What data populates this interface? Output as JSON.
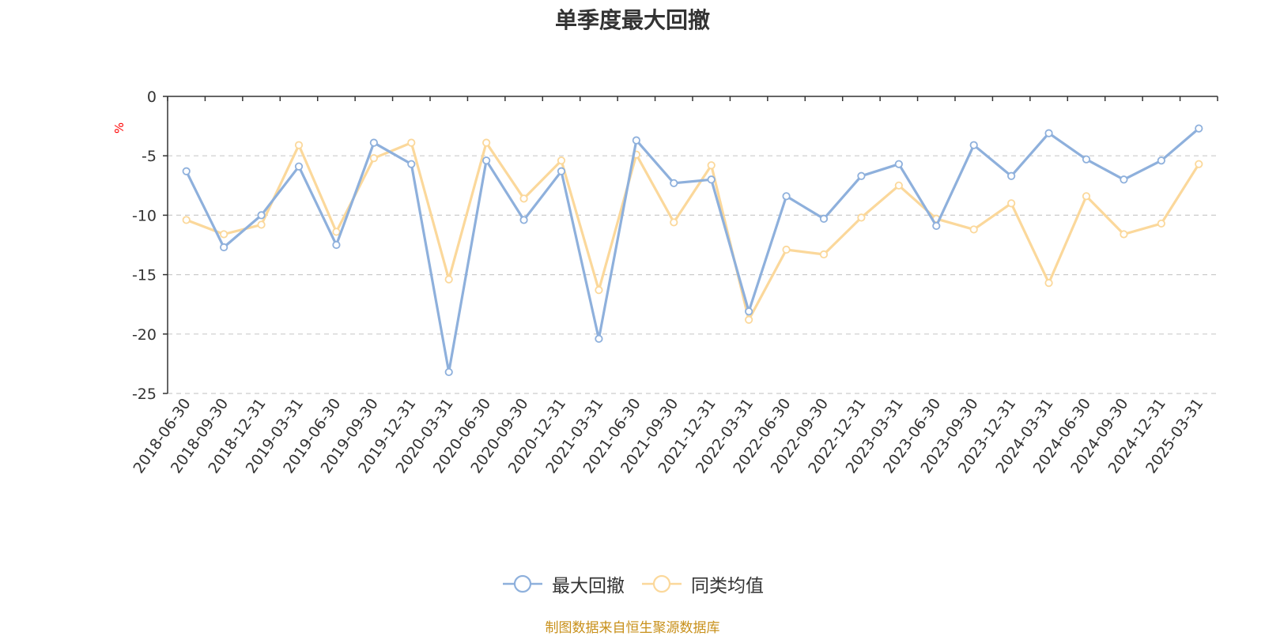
{
  "chart_data": {
    "type": "line",
    "title": "单季度最大回撤",
    "ylabel": "%",
    "ylim": [
      -25,
      0
    ],
    "yticks": [
      0,
      -5,
      -10,
      -15,
      -20,
      -25
    ],
    "grid": true,
    "legend_position": "bottom",
    "categories": [
      "2018-06-30",
      "2018-09-30",
      "2018-12-31",
      "2019-03-31",
      "2019-06-30",
      "2019-09-30",
      "2019-12-31",
      "2020-03-31",
      "2020-06-30",
      "2020-09-30",
      "2020-12-31",
      "2021-03-31",
      "2021-06-30",
      "2021-09-30",
      "2021-12-31",
      "2022-03-31",
      "2022-06-30",
      "2022-09-30",
      "2022-12-31",
      "2023-03-31",
      "2023-06-30",
      "2023-09-30",
      "2023-12-31",
      "2024-03-31",
      "2024-06-30",
      "2024-09-30",
      "2024-12-31",
      "2025-03-31"
    ],
    "series": [
      {
        "name": "最大回撤",
        "color": "#8eb0dc",
        "values": [
          -6.3,
          -12.7,
          -10.0,
          -5.9,
          -12.5,
          -3.9,
          -5.7,
          -23.2,
          -5.4,
          -10.4,
          -6.3,
          -20.4,
          -3.7,
          -7.3,
          -7.0,
          -18.1,
          -8.4,
          -10.3,
          -6.7,
          -5.7,
          -10.9,
          -4.1,
          -6.7,
          -3.1,
          -5.3,
          -7.0,
          -5.4,
          -2.7
        ]
      },
      {
        "name": "同类均值",
        "color": "#fbd89b",
        "values": [
          -10.4,
          -11.6,
          -10.8,
          -4.1,
          -11.4,
          -5.2,
          -3.9,
          -15.4,
          -3.9,
          -8.6,
          -5.4,
          -16.3,
          -4.9,
          -10.6,
          -5.8,
          -18.8,
          -12.9,
          -13.3,
          -10.2,
          -7.5,
          -10.3,
          -11.2,
          -9.0,
          -15.7,
          -8.4,
          -11.6,
          -10.7,
          -5.7
        ]
      }
    ]
  },
  "footer": {
    "source_text": "制图数据来自恒生聚源数据库"
  }
}
